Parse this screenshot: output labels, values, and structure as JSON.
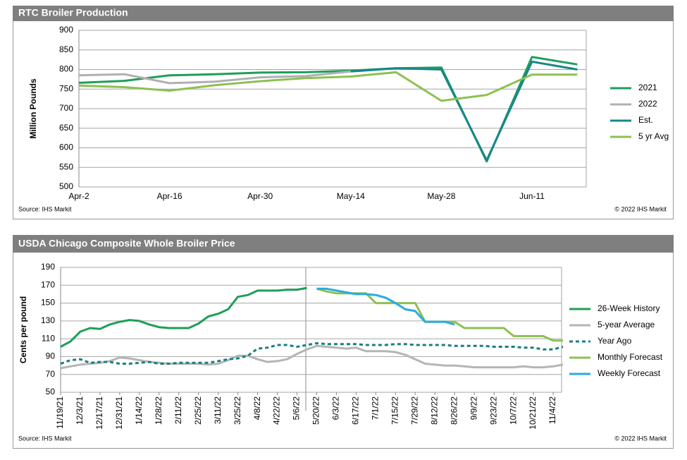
{
  "chart_data": [
    {
      "type": "line",
      "title": "RTC Broiler Production",
      "ylabel": "Million  Pounds",
      "source": "Source: IHS Markit",
      "copyright": "© 2022 IHS Markit",
      "categories": [
        "Apr-2",
        null,
        "Apr-16",
        null,
        "Apr-30",
        null,
        "May-14",
        null,
        "May-28",
        null,
        "Jun-11",
        null
      ],
      "ylim": [
        500,
        900
      ],
      "yticks": [
        500,
        550,
        600,
        650,
        700,
        750,
        800,
        850,
        900
      ],
      "grid": true,
      "legend": "right",
      "series": [
        {
          "name": "2021",
          "color": "#1e9e5a",
          "values": [
            766,
            771,
            785,
            788,
            792,
            793,
            797,
            803,
            805,
            565,
            832,
            813
          ]
        },
        {
          "name": "2022",
          "color": "#b0b0b0",
          "values": [
            785,
            788,
            765,
            769,
            780,
            783,
            795,
            null,
            null,
            null,
            null,
            null
          ]
        },
        {
          "name": "Est.",
          "color": "#17878a",
          "values": [
            null,
            null,
            null,
            null,
            null,
            null,
            795,
            803,
            800,
            568,
            820,
            800
          ]
        },
        {
          "name": "5 yr Avg",
          "color": "#8cc152",
          "values": [
            759,
            755,
            746,
            760,
            770,
            778,
            782,
            793,
            720,
            735,
            787,
            787
          ]
        }
      ]
    },
    {
      "type": "line",
      "title": "USDA Chicago Composite Whole Broiler Price",
      "ylabel": "Cents per pound",
      "source": "Source: IHS Markit",
      "copyright": "© 2022 IHS Markit",
      "categories": [
        "11/19/21",
        null,
        "12/3/21",
        null,
        "12/17/21",
        null,
        "12/31/21",
        null,
        "1/14/22",
        null,
        "1/28/22",
        null,
        "2/11/22",
        null,
        "2/25/22",
        null,
        "3/11/22",
        null,
        "3/25/22",
        null,
        "4/8/22",
        null,
        "4/22/22",
        null,
        "5/6/22",
        null,
        "5/20/22",
        null,
        "6/3/22",
        null,
        "6/17/22",
        null,
        "7/1/22",
        null,
        "7/15/22",
        null,
        "7/29/22",
        null,
        "8/12/22",
        null,
        "8/26/22",
        null,
        "9/9/22",
        null,
        "9/23/22",
        null,
        "10/7/22",
        null,
        "10/21/22",
        null,
        "11/4/22",
        null
      ],
      "ylim": [
        50,
        190
      ],
      "yticks": [
        50,
        70,
        90,
        110,
        130,
        150,
        170,
        190
      ],
      "grid": true,
      "legend": "right",
      "series": [
        {
          "name": "26-Week History",
          "color": "#1e9e5a",
          "values": [
            101,
            107,
            118,
            122,
            121,
            126,
            129,
            131,
            130,
            126,
            123,
            122,
            122,
            122,
            127,
            135,
            138,
            143,
            157,
            159,
            164,
            164,
            164,
            165,
            165,
            167,
            null,
            null,
            null,
            null,
            null,
            null,
            null,
            null,
            null,
            null,
            null,
            null,
            null,
            null,
            null,
            null,
            null,
            null,
            null,
            null,
            null,
            null,
            null,
            null,
            null,
            null
          ]
        },
        {
          "name": "5-year Average",
          "color": "#b5b5b5",
          "values": [
            77,
            79,
            81,
            82,
            83,
            85,
            89,
            88,
            86,
            84,
            83,
            82,
            82,
            82,
            82,
            81,
            82,
            86,
            91,
            91,
            87,
            84,
            85,
            87,
            93,
            98,
            102,
            101,
            100,
            99,
            100,
            96,
            96,
            96,
            95,
            92,
            87,
            82,
            81,
            80,
            80,
            79,
            78,
            78,
            78,
            78,
            78,
            79,
            78,
            78,
            79,
            81
          ]
        },
        {
          "name": "Year Ago",
          "color": "#1a7f80",
          "style": "dashed",
          "values": [
            82,
            86,
            87,
            83,
            84,
            84,
            82,
            82,
            83,
            84,
            82,
            82,
            83,
            83,
            83,
            83,
            85,
            87,
            88,
            91,
            99,
            100,
            103,
            103,
            101,
            103,
            105,
            104,
            104,
            104,
            104,
            103,
            103,
            103,
            104,
            104,
            103,
            103,
            103,
            103,
            102,
            102,
            102,
            102,
            101,
            101,
            101,
            100,
            100,
            98,
            98,
            101
          ]
        },
        {
          "name": "Monthly Forecast",
          "color": "#8cc152",
          "values": [
            null,
            null,
            null,
            null,
            null,
            null,
            null,
            null,
            null,
            null,
            null,
            null,
            null,
            null,
            null,
            null,
            null,
            null,
            null,
            null,
            null,
            null,
            null,
            null,
            null,
            null,
            166,
            163,
            161,
            161,
            161,
            161,
            150,
            150,
            150,
            150,
            150,
            129,
            129,
            129,
            129,
            122,
            122,
            122,
            122,
            122,
            113,
            113,
            113,
            113,
            108,
            108
          ]
        },
        {
          "name": "Weekly Forecast",
          "color": "#29abe2",
          "values": [
            null,
            null,
            null,
            null,
            null,
            null,
            null,
            null,
            null,
            null,
            null,
            null,
            null,
            null,
            null,
            null,
            null,
            null,
            null,
            null,
            null,
            null,
            null,
            null,
            null,
            null,
            166,
            166,
            164,
            162,
            160,
            160,
            159,
            156,
            150,
            143,
            141,
            129,
            129,
            129,
            126,
            null,
            null,
            null,
            null,
            null,
            null,
            null,
            null,
            null,
            null,
            null
          ]
        }
      ]
    }
  ]
}
